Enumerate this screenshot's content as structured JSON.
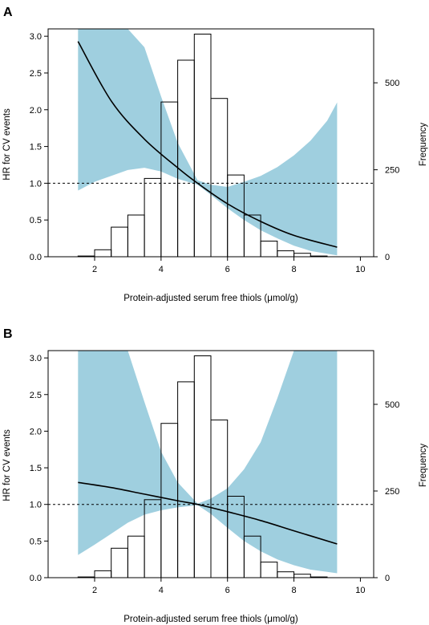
{
  "chart_data": [
    {
      "panel": "A",
      "type": "line",
      "xlabel": "Protein-adjusted serum free thiols (μmol/g)",
      "ylabel": "HR for CV events",
      "y2label": "Frequency",
      "xlim": [
        0.6,
        10.4
      ],
      "xticks": [
        2,
        4,
        6,
        8,
        10
      ],
      "xtick_labels": [
        "2",
        "4",
        "6",
        "8",
        "10"
      ],
      "ylim": [
        0,
        3.1
      ],
      "yticks": [
        0,
        0.5,
        1.0,
        1.5,
        2.0,
        2.5,
        3.0
      ],
      "ytick_labels": [
        "0.0",
        "0.5",
        "1.0",
        "1.5",
        "2.0",
        "2.5",
        "3.0"
      ],
      "y2lim": [
        0,
        655
      ],
      "y2ticks": [
        0,
        250,
        500
      ],
      "y2tick_labels": [
        "0",
        "250",
        "500"
      ],
      "reference_line_y": 1.0,
      "histogram": {
        "bin_edges": [
          1.0,
          1.5,
          2.0,
          2.5,
          3.0,
          3.5,
          4.0,
          4.5,
          5.0,
          5.5,
          6.0,
          6.5,
          7.0,
          7.5,
          8.0,
          8.5,
          9.0,
          9.5,
          10.0
        ],
        "counts": [
          0,
          2,
          20,
          85,
          120,
          225,
          445,
          565,
          640,
          455,
          235,
          120,
          45,
          17,
          10,
          2,
          0,
          0
        ]
      },
      "hr_curve": {
        "x": [
          1.5,
          2.5,
          3.5,
          4.5,
          5.1,
          6.0,
          7.0,
          8.0,
          9.3
        ],
        "y": [
          2.93,
          2.12,
          1.6,
          1.21,
          1.0,
          0.72,
          0.48,
          0.29,
          0.13
        ]
      },
      "ci_band": {
        "x": [
          1.5,
          2.0,
          2.5,
          3.0,
          3.5,
          4.0,
          4.5,
          5.1,
          5.5,
          6.0,
          6.5,
          7.0,
          7.5,
          8.0,
          8.5,
          9.0,
          9.3
        ],
        "lower": [
          0.9,
          1.02,
          1.1,
          1.18,
          1.21,
          1.16,
          1.06,
          0.98,
          0.84,
          0.66,
          0.5,
          0.36,
          0.25,
          0.15,
          0.08,
          0.04,
          0.02
        ],
        "upper": [
          3.1,
          3.1,
          3.1,
          3.1,
          2.85,
          2.18,
          1.55,
          1.04,
          0.98,
          0.95,
          1.02,
          1.1,
          1.22,
          1.38,
          1.58,
          1.85,
          2.1
        ]
      }
    },
    {
      "panel": "B",
      "type": "line",
      "xlabel": "Protein-adjusted serum free thiols (μmol/g)",
      "ylabel": "HR for CV events",
      "y2label": "Frequency",
      "xlim": [
        0.6,
        10.4
      ],
      "xticks": [
        2,
        4,
        6,
        8,
        10
      ],
      "xtick_labels": [
        "2",
        "4",
        "6",
        "8",
        "10"
      ],
      "ylim": [
        0,
        3.1
      ],
      "yticks": [
        0,
        0.5,
        1.0,
        1.5,
        2.0,
        2.5,
        3.0
      ],
      "ytick_labels": [
        "0.0",
        "0.5",
        "1.0",
        "1.5",
        "2.0",
        "2.5",
        "3.0"
      ],
      "y2lim": [
        0,
        655
      ],
      "y2ticks": [
        0,
        250,
        500
      ],
      "y2tick_labels": [
        "0",
        "250",
        "500"
      ],
      "reference_line_y": 1.0,
      "histogram": {
        "bin_edges": [
          1.0,
          1.5,
          2.0,
          2.5,
          3.0,
          3.5,
          4.0,
          4.5,
          5.0,
          5.5,
          6.0,
          6.5,
          7.0,
          7.5,
          8.0,
          8.5,
          9.0,
          9.5,
          10.0
        ],
        "counts": [
          0,
          2,
          20,
          85,
          120,
          225,
          445,
          565,
          640,
          455,
          235,
          120,
          45,
          17,
          10,
          2,
          0,
          0
        ]
      },
      "hr_curve": {
        "x": [
          1.5,
          2.5,
          3.5,
          4.5,
          5.1,
          6.0,
          7.0,
          8.0,
          9.3
        ],
        "y": [
          1.3,
          1.23,
          1.14,
          1.05,
          1.0,
          0.9,
          0.78,
          0.64,
          0.46
        ]
      },
      "ci_band": {
        "x": [
          1.5,
          2.0,
          2.5,
          3.0,
          3.5,
          4.0,
          4.5,
          5.1,
          5.5,
          6.0,
          6.5,
          7.0,
          7.5,
          8.0,
          8.5,
          9.0,
          9.3
        ],
        "lower": [
          0.31,
          0.45,
          0.6,
          0.75,
          0.86,
          0.92,
          0.96,
          0.99,
          0.87,
          0.68,
          0.5,
          0.36,
          0.25,
          0.17,
          0.11,
          0.08,
          0.06
        ],
        "upper": [
          3.1,
          3.1,
          3.1,
          3.1,
          2.4,
          1.72,
          1.3,
          1.01,
          1.08,
          1.22,
          1.48,
          1.85,
          2.45,
          3.1,
          3.1,
          3.1,
          3.1
        ]
      }
    }
  ],
  "colors": {
    "ci_band": "#9fcfdf",
    "line": "#000000",
    "bar_fill": "#ffffff",
    "bar_stroke": "#000000"
  }
}
